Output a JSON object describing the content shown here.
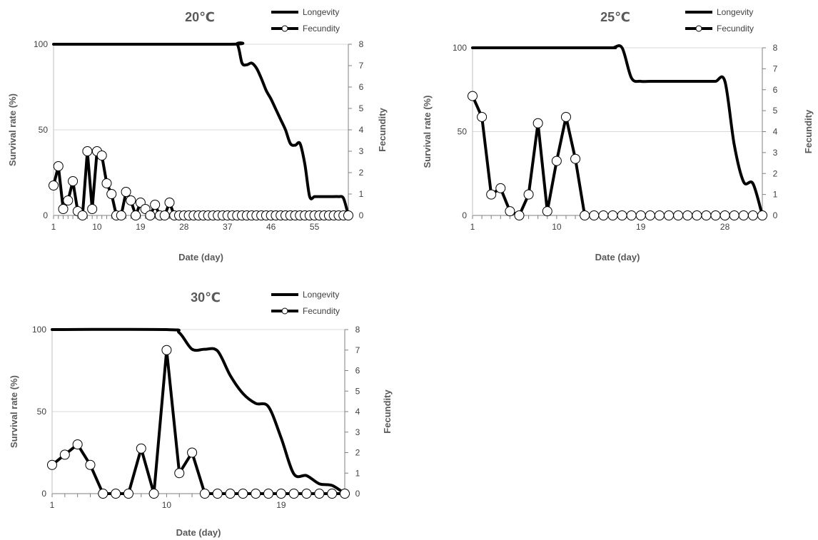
{
  "chart_data": [
    {
      "type": "line",
      "title": "20℃",
      "xlabel": "Date (day)",
      "ylabel": "Survival rate (%)",
      "y2label": "Fecundity",
      "xlim": [
        1,
        62
      ],
      "xticks": [
        1,
        10,
        19,
        28,
        37,
        46,
        55
      ],
      "ylim": [
        0,
        100
      ],
      "yticks": [
        0,
        50,
        100
      ],
      "y2lim": [
        0,
        8
      ],
      "y2ticks": [
        0,
        1,
        2,
        3,
        4,
        5,
        6,
        7,
        8
      ],
      "grid": true,
      "legend": "top-right",
      "series": [
        {
          "name": "Longevity",
          "axis": "left",
          "marker": false,
          "x": [
            1,
            37,
            39,
            40,
            41,
            42,
            43,
            44,
            45,
            46,
            47,
            48,
            49,
            50,
            51,
            52,
            53,
            54,
            55,
            56,
            57,
            58,
            59,
            60,
            61,
            62
          ],
          "values": [
            100,
            100,
            100,
            89,
            88,
            89,
            86,
            80,
            73,
            68,
            62,
            56,
            50,
            42,
            41,
            42,
            30,
            11,
            11,
            11,
            11,
            11,
            11,
            11,
            10,
            0
          ]
        },
        {
          "name": "Fecundity",
          "axis": "right",
          "marker": true,
          "x": [
            1,
            2,
            3,
            4,
            5,
            6,
            7,
            8,
            9,
            10,
            11,
            12,
            13,
            14,
            15,
            16,
            17,
            18,
            19,
            20,
            21,
            22,
            23,
            24,
            25,
            26,
            27,
            28,
            29,
            30,
            31,
            32,
            33,
            34,
            35,
            36,
            37,
            38,
            39,
            40,
            41,
            42,
            43,
            44,
            45,
            46,
            47,
            48,
            49,
            50,
            51,
            52,
            53,
            54,
            55,
            56,
            57,
            58,
            59,
            60,
            61,
            62
          ],
          "values": [
            1.4,
            2.3,
            0.3,
            0.7,
            1.6,
            0.2,
            0,
            3.0,
            0.3,
            3.0,
            2.8,
            1.5,
            1.0,
            0,
            0,
            1.1,
            0.7,
            0,
            0.6,
            0.3,
            0,
            0.5,
            0,
            0,
            0.6,
            0,
            0,
            0,
            0,
            0,
            0,
            0,
            0,
            0,
            0,
            0,
            0,
            0,
            0,
            0,
            0,
            0,
            0,
            0,
            0,
            0,
            0,
            0,
            0,
            0,
            0,
            0,
            0,
            0,
            0,
            0,
            0,
            0,
            0,
            0,
            0,
            0
          ]
        }
      ]
    },
    {
      "type": "line",
      "title": "25℃",
      "xlabel": "Date (day)",
      "ylabel": "Survival rate (%)",
      "y2label": "Fecundity",
      "xlim": [
        1,
        32
      ],
      "xticks": [
        1,
        10,
        19,
        28
      ],
      "ylim": [
        0,
        100
      ],
      "yticks": [
        0,
        50,
        100
      ],
      "y2lim": [
        0,
        8
      ],
      "y2ticks": [
        0,
        1,
        2,
        3,
        4,
        5,
        6,
        7,
        8
      ],
      "grid": true,
      "legend": "top-right",
      "series": [
        {
          "name": "Longevity",
          "axis": "left",
          "marker": false,
          "x": [
            1,
            15,
            16,
            17,
            18,
            19,
            20,
            21,
            22,
            23,
            24,
            25,
            26,
            27,
            28,
            29,
            30,
            31,
            32
          ],
          "values": [
            100,
            100,
            100,
            100,
            82,
            80,
            80,
            80,
            80,
            80,
            80,
            80,
            80,
            80,
            80,
            42,
            20,
            19,
            0
          ]
        },
        {
          "name": "Fecundity",
          "axis": "right",
          "marker": true,
          "x": [
            1,
            2,
            3,
            4,
            5,
            6,
            7,
            8,
            9,
            10,
            11,
            12,
            13,
            14,
            15,
            16,
            17,
            18,
            19,
            20,
            21,
            22,
            23,
            24,
            25,
            26,
            27,
            28,
            29,
            30,
            31,
            32
          ],
          "values": [
            5.7,
            4.7,
            1.0,
            1.3,
            0.2,
            0,
            1.0,
            4.4,
            0.2,
            2.6,
            4.7,
            2.7,
            0,
            0,
            0,
            0,
            0,
            0,
            0,
            0,
            0,
            0,
            0,
            0,
            0,
            0,
            0,
            0,
            0,
            0,
            0,
            0
          ]
        }
      ]
    },
    {
      "type": "line",
      "title": "30℃",
      "xlabel": "Date (day)",
      "ylabel": "Survival rate (%)",
      "y2label": "Fecundity",
      "xlim": [
        1,
        24
      ],
      "xticks": [
        1,
        10,
        19
      ],
      "ylim": [
        0,
        100
      ],
      "yticks": [
        0,
        50,
        100
      ],
      "y2lim": [
        0,
        8
      ],
      "y2ticks": [
        0,
        1,
        2,
        3,
        4,
        5,
        6,
        7,
        8
      ],
      "grid": true,
      "legend": "top-right",
      "series": [
        {
          "name": "Longevity",
          "axis": "left",
          "marker": false,
          "x": [
            1,
            10,
            11,
            12,
            13,
            14,
            15,
            16,
            17,
            18,
            19,
            20,
            21,
            22,
            23,
            24
          ],
          "values": [
            100,
            100,
            98,
            88,
            88,
            87,
            72,
            61,
            55,
            53,
            34,
            12,
            11,
            6,
            5,
            0
          ]
        },
        {
          "name": "Fecundity",
          "axis": "right",
          "marker": true,
          "x": [
            1,
            2,
            3,
            4,
            5,
            6,
            7,
            8,
            9,
            10,
            11,
            12,
            13,
            14,
            15,
            16,
            17,
            18,
            19,
            20,
            21,
            22,
            23,
            24
          ],
          "values": [
            1.4,
            1.9,
            2.4,
            1.4,
            0,
            0,
            0,
            2.2,
            0,
            7.0,
            1.0,
            2.0,
            0,
            0,
            0,
            0,
            0,
            0,
            0,
            0,
            0,
            0,
            0,
            0
          ]
        }
      ]
    }
  ]
}
